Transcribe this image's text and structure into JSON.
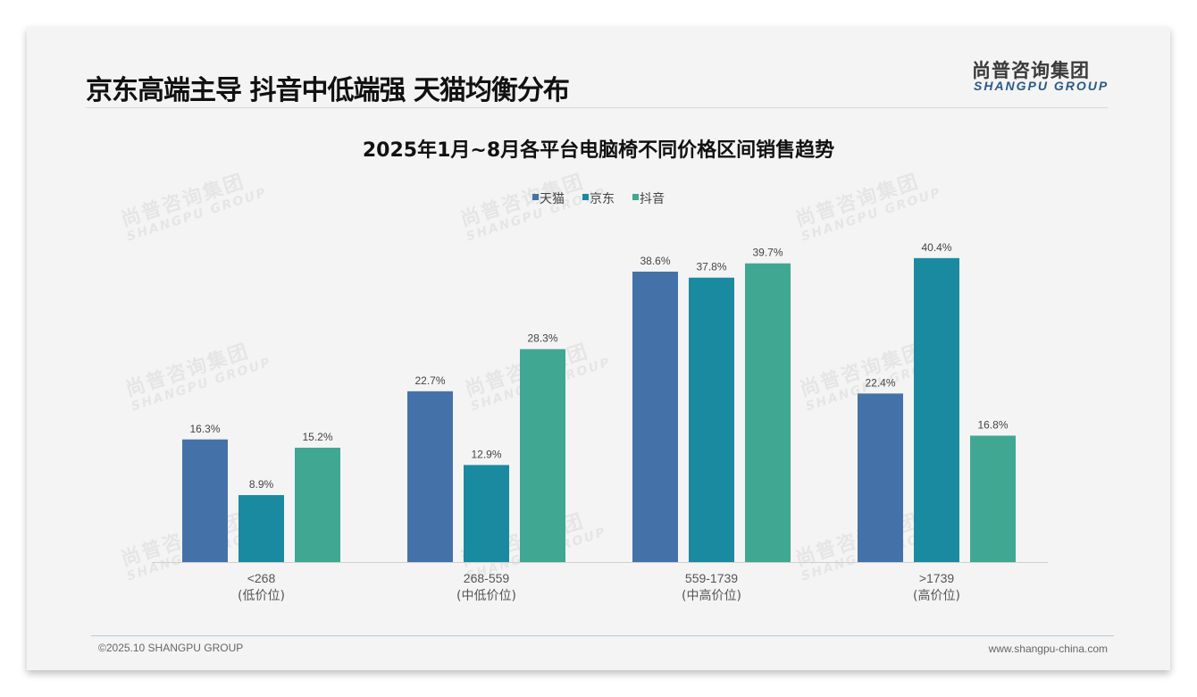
{
  "header": {
    "title": "京东高端主导 抖音中低端强 天猫均衡分布",
    "logo_cn": "尚普咨询集团",
    "logo_en": "SHANGPU GROUP"
  },
  "watermark": {
    "cn": "尚普咨询集团",
    "en": "SHANGPU GROUP"
  },
  "footer": {
    "copyright": "©2025.10 SHANGPU GROUP",
    "website": "www.shangpu-china.com"
  },
  "chart_data": {
    "type": "bar",
    "title": "2025年1月~8月各平台电脑椅不同价格区间销售趋势",
    "categories": [
      {
        "range": "<268",
        "tier": "(低价位)"
      },
      {
        "range": "268-559",
        "tier": "(中低价位)"
      },
      {
        "range": "559-1739",
        "tier": "(中高价位)"
      },
      {
        "range": ">1739",
        "tier": "(高价位)"
      }
    ],
    "series": [
      {
        "name": "天猫",
        "color": "#4472a8",
        "values": [
          16.3,
          22.7,
          38.6,
          22.4
        ]
      },
      {
        "name": "京东",
        "color": "#1a8aa0",
        "values": [
          8.9,
          12.9,
          37.8,
          40.4
        ]
      },
      {
        "name": "抖音",
        "color": "#40a792",
        "values": [
          15.2,
          28.3,
          39.7,
          16.8
        ]
      }
    ],
    "unit": "%",
    "legend": "top-center",
    "grid": false,
    "ylim": [
      0,
      42
    ]
  }
}
